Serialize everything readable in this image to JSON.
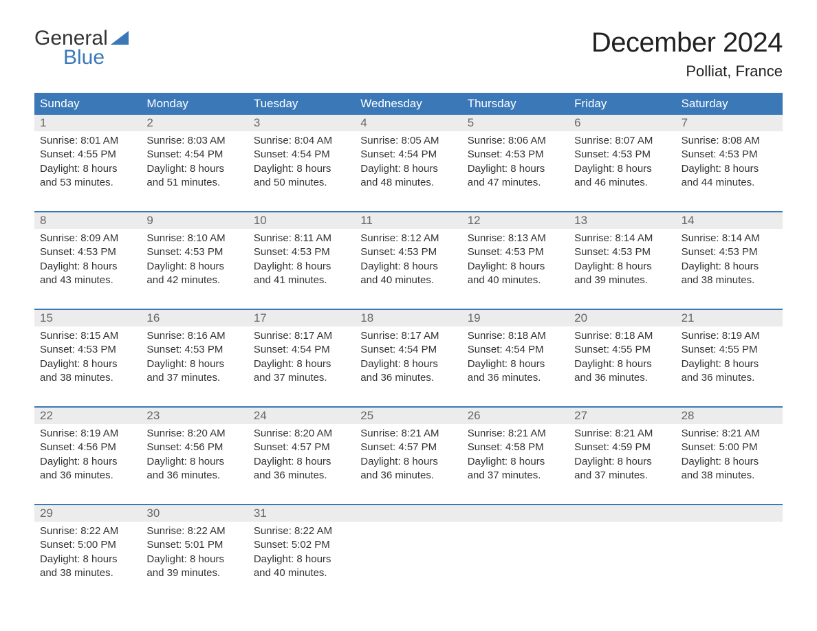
{
  "colors": {
    "header_bg": "#3a78b8",
    "header_text": "#ffffff",
    "daynum_band_bg": "#ececec",
    "daynum_text": "#666666",
    "body_text": "#333333",
    "week_border": "#3a78b8",
    "logo_blue": "#3a78b8",
    "page_bg": "#ffffff"
  },
  "logo": {
    "line1": "General",
    "line2": "Blue"
  },
  "title": {
    "month": "December 2024",
    "location": "Polliat, France"
  },
  "weekdays": [
    "Sunday",
    "Monday",
    "Tuesday",
    "Wednesday",
    "Thursday",
    "Friday",
    "Saturday"
  ],
  "weeks": [
    {
      "nums": [
        "1",
        "2",
        "3",
        "4",
        "5",
        "6",
        "7"
      ],
      "days": [
        {
          "sunrise": "Sunrise: 8:01 AM",
          "sunset": "Sunset: 4:55 PM",
          "d1": "Daylight: 8 hours",
          "d2": "and 53 minutes."
        },
        {
          "sunrise": "Sunrise: 8:03 AM",
          "sunset": "Sunset: 4:54 PM",
          "d1": "Daylight: 8 hours",
          "d2": "and 51 minutes."
        },
        {
          "sunrise": "Sunrise: 8:04 AM",
          "sunset": "Sunset: 4:54 PM",
          "d1": "Daylight: 8 hours",
          "d2": "and 50 minutes."
        },
        {
          "sunrise": "Sunrise: 8:05 AM",
          "sunset": "Sunset: 4:54 PM",
          "d1": "Daylight: 8 hours",
          "d2": "and 48 minutes."
        },
        {
          "sunrise": "Sunrise: 8:06 AM",
          "sunset": "Sunset: 4:53 PM",
          "d1": "Daylight: 8 hours",
          "d2": "and 47 minutes."
        },
        {
          "sunrise": "Sunrise: 8:07 AM",
          "sunset": "Sunset: 4:53 PM",
          "d1": "Daylight: 8 hours",
          "d2": "and 46 minutes."
        },
        {
          "sunrise": "Sunrise: 8:08 AM",
          "sunset": "Sunset: 4:53 PM",
          "d1": "Daylight: 8 hours",
          "d2": "and 44 minutes."
        }
      ]
    },
    {
      "nums": [
        "8",
        "9",
        "10",
        "11",
        "12",
        "13",
        "14"
      ],
      "days": [
        {
          "sunrise": "Sunrise: 8:09 AM",
          "sunset": "Sunset: 4:53 PM",
          "d1": "Daylight: 8 hours",
          "d2": "and 43 minutes."
        },
        {
          "sunrise": "Sunrise: 8:10 AM",
          "sunset": "Sunset: 4:53 PM",
          "d1": "Daylight: 8 hours",
          "d2": "and 42 minutes."
        },
        {
          "sunrise": "Sunrise: 8:11 AM",
          "sunset": "Sunset: 4:53 PM",
          "d1": "Daylight: 8 hours",
          "d2": "and 41 minutes."
        },
        {
          "sunrise": "Sunrise: 8:12 AM",
          "sunset": "Sunset: 4:53 PM",
          "d1": "Daylight: 8 hours",
          "d2": "and 40 minutes."
        },
        {
          "sunrise": "Sunrise: 8:13 AM",
          "sunset": "Sunset: 4:53 PM",
          "d1": "Daylight: 8 hours",
          "d2": "and 40 minutes."
        },
        {
          "sunrise": "Sunrise: 8:14 AM",
          "sunset": "Sunset: 4:53 PM",
          "d1": "Daylight: 8 hours",
          "d2": "and 39 minutes."
        },
        {
          "sunrise": "Sunrise: 8:14 AM",
          "sunset": "Sunset: 4:53 PM",
          "d1": "Daylight: 8 hours",
          "d2": "and 38 minutes."
        }
      ]
    },
    {
      "nums": [
        "15",
        "16",
        "17",
        "18",
        "19",
        "20",
        "21"
      ],
      "days": [
        {
          "sunrise": "Sunrise: 8:15 AM",
          "sunset": "Sunset: 4:53 PM",
          "d1": "Daylight: 8 hours",
          "d2": "and 38 minutes."
        },
        {
          "sunrise": "Sunrise: 8:16 AM",
          "sunset": "Sunset: 4:53 PM",
          "d1": "Daylight: 8 hours",
          "d2": "and 37 minutes."
        },
        {
          "sunrise": "Sunrise: 8:17 AM",
          "sunset": "Sunset: 4:54 PM",
          "d1": "Daylight: 8 hours",
          "d2": "and 37 minutes."
        },
        {
          "sunrise": "Sunrise: 8:17 AM",
          "sunset": "Sunset: 4:54 PM",
          "d1": "Daylight: 8 hours",
          "d2": "and 36 minutes."
        },
        {
          "sunrise": "Sunrise: 8:18 AM",
          "sunset": "Sunset: 4:54 PM",
          "d1": "Daylight: 8 hours",
          "d2": "and 36 minutes."
        },
        {
          "sunrise": "Sunrise: 8:18 AM",
          "sunset": "Sunset: 4:55 PM",
          "d1": "Daylight: 8 hours",
          "d2": "and 36 minutes."
        },
        {
          "sunrise": "Sunrise: 8:19 AM",
          "sunset": "Sunset: 4:55 PM",
          "d1": "Daylight: 8 hours",
          "d2": "and 36 minutes."
        }
      ]
    },
    {
      "nums": [
        "22",
        "23",
        "24",
        "25",
        "26",
        "27",
        "28"
      ],
      "days": [
        {
          "sunrise": "Sunrise: 8:19 AM",
          "sunset": "Sunset: 4:56 PM",
          "d1": "Daylight: 8 hours",
          "d2": "and 36 minutes."
        },
        {
          "sunrise": "Sunrise: 8:20 AM",
          "sunset": "Sunset: 4:56 PM",
          "d1": "Daylight: 8 hours",
          "d2": "and 36 minutes."
        },
        {
          "sunrise": "Sunrise: 8:20 AM",
          "sunset": "Sunset: 4:57 PM",
          "d1": "Daylight: 8 hours",
          "d2": "and 36 minutes."
        },
        {
          "sunrise": "Sunrise: 8:21 AM",
          "sunset": "Sunset: 4:57 PM",
          "d1": "Daylight: 8 hours",
          "d2": "and 36 minutes."
        },
        {
          "sunrise": "Sunrise: 8:21 AM",
          "sunset": "Sunset: 4:58 PM",
          "d1": "Daylight: 8 hours",
          "d2": "and 37 minutes."
        },
        {
          "sunrise": "Sunrise: 8:21 AM",
          "sunset": "Sunset: 4:59 PM",
          "d1": "Daylight: 8 hours",
          "d2": "and 37 minutes."
        },
        {
          "sunrise": "Sunrise: 8:21 AM",
          "sunset": "Sunset: 5:00 PM",
          "d1": "Daylight: 8 hours",
          "d2": "and 38 minutes."
        }
      ]
    },
    {
      "nums": [
        "29",
        "30",
        "31",
        "",
        "",
        "",
        ""
      ],
      "days": [
        {
          "sunrise": "Sunrise: 8:22 AM",
          "sunset": "Sunset: 5:00 PM",
          "d1": "Daylight: 8 hours",
          "d2": "and 38 minutes."
        },
        {
          "sunrise": "Sunrise: 8:22 AM",
          "sunset": "Sunset: 5:01 PM",
          "d1": "Daylight: 8 hours",
          "d2": "and 39 minutes."
        },
        {
          "sunrise": "Sunrise: 8:22 AM",
          "sunset": "Sunset: 5:02 PM",
          "d1": "Daylight: 8 hours",
          "d2": "and 40 minutes."
        },
        {
          "sunrise": "",
          "sunset": "",
          "d1": "",
          "d2": ""
        },
        {
          "sunrise": "",
          "sunset": "",
          "d1": "",
          "d2": ""
        },
        {
          "sunrise": "",
          "sunset": "",
          "d1": "",
          "d2": ""
        },
        {
          "sunrise": "",
          "sunset": "",
          "d1": "",
          "d2": ""
        }
      ]
    }
  ]
}
